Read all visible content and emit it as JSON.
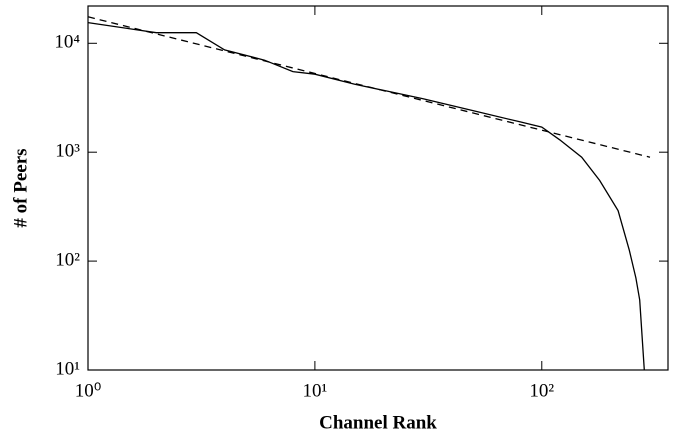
{
  "chart_data": {
    "type": "line",
    "xlabel": "Channel Rank",
    "ylabel": "# of Peers",
    "log_x": true,
    "log_y": true,
    "xlim": [
      1,
      360
    ],
    "ylim": [
      10,
      22000
    ],
    "xticks": [
      {
        "value": 1,
        "label": "10⁰"
      },
      {
        "value": 10,
        "label": "10¹"
      },
      {
        "value": 100,
        "label": "10²"
      }
    ],
    "yticks": [
      {
        "value": 10,
        "label": "10¹"
      },
      {
        "value": 100,
        "label": "10²"
      },
      {
        "value": 1000,
        "label": "10³"
      },
      {
        "value": 10000,
        "label": "10⁴"
      }
    ],
    "series": [
      {
        "style": "solid",
        "color": "#000000",
        "x": [
          1,
          2,
          3,
          4,
          6,
          8,
          10,
          15,
          20,
          30,
          50,
          80,
          100,
          120,
          150,
          180,
          217,
          243,
          260,
          270,
          283
        ],
        "values": [
          15500,
          12500,
          12500,
          8700,
          7000,
          5500,
          5200,
          4200,
          3700,
          3100,
          2400,
          1900,
          1700,
          1300,
          900,
          550,
          290,
          126,
          70,
          44,
          10
        ]
      },
      {
        "style": "dashed",
        "color": "#000000",
        "x": [
          1,
          300
        ],
        "values": [
          17500,
          900
        ]
      }
    ]
  }
}
